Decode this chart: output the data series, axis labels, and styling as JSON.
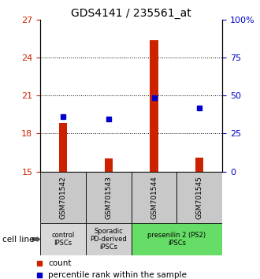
{
  "title": "GDS4141 / 235561_at",
  "samples": [
    "GSM701542",
    "GSM701543",
    "GSM701544",
    "GSM701545"
  ],
  "bar_values": [
    18.85,
    16.05,
    25.35,
    16.1
  ],
  "bar_base": 15.0,
  "percentile_values": [
    19.35,
    19.15,
    20.8,
    20.05
  ],
  "ylim_left": [
    15,
    27
  ],
  "ylim_right": [
    0,
    100
  ],
  "yticks_left": [
    15,
    18,
    21,
    24,
    27
  ],
  "yticks_right": [
    0,
    25,
    50,
    75,
    100
  ],
  "ytick_labels_right": [
    "0",
    "25",
    "50",
    "75",
    "100%"
  ],
  "bar_color": "#cc2200",
  "dot_color": "#0000cc",
  "title_fontsize": 10,
  "groups": [
    {
      "label": "control\nIPSCs",
      "start": 0,
      "end": 1,
      "color": "#d8d8d8"
    },
    {
      "label": "Sporadic\nPD-derived\niPSCs",
      "start": 1,
      "end": 2,
      "color": "#d0d0d0"
    },
    {
      "label": "presenilin 2 (PS2)\niPSCs",
      "start": 2,
      "end": 4,
      "color": "#66dd66"
    }
  ],
  "cell_line_label": "cell line",
  "legend_count_label": "count",
  "legend_percentile_label": "percentile rank within the sample",
  "background_color": "#ffffff",
  "sample_box_color": "#c8c8c8",
  "bar_width": 0.18,
  "grid_yticks": [
    18,
    21,
    24
  ]
}
